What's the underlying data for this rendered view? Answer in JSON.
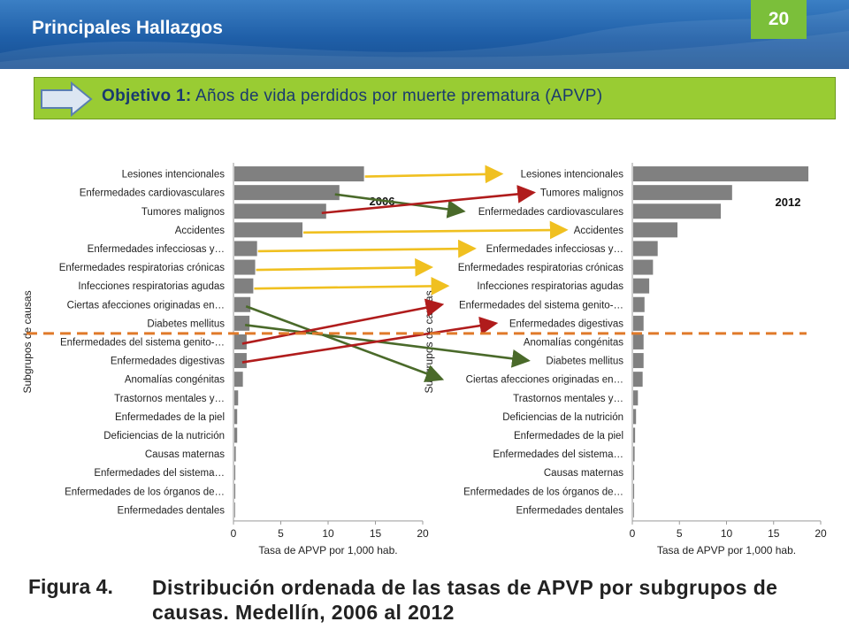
{
  "header": {
    "title": "Principales Hallazgos",
    "page_number": "20",
    "colors": {
      "bar": "#1f5fa8",
      "badge": "#7bbf3a"
    }
  },
  "objective": {
    "label": "Objetivo 1:",
    "text": "Años de vida perdidos por muerte prematura (APVP)",
    "color": "#99cc33"
  },
  "caption": {
    "label": "Figura 4.",
    "text": "Distribución ordenada de las tasas de APVP por subgrupos de causas. Medellín, 2006 al 2012"
  },
  "chart_data": [
    {
      "type": "bar",
      "orientation": "horizontal",
      "year_label": "2006",
      "categories": [
        "Lesiones intencionales",
        "Enfermedades cardiovasculares",
        "Tumores malignos",
        "Accidentes",
        "Enfermedades infecciosas y…",
        "Enfermedades respiratorias crónicas",
        "Infecciones respiratorias agudas",
        "Ciertas afecciones originadas en…",
        "Diabetes mellitus",
        "Enfermedades del sistema genito-…",
        "Enfermedades digestivas",
        "Anomalías congénitas",
        "Trastornos mentales y…",
        "Enfermedades de la piel",
        "Deficiencias de la nutrición",
        "Causas maternas",
        "Enfermedades del sistema…",
        "Enfermedades de los órganos de…",
        "Enfermedades dentales"
      ],
      "values": [
        13.7,
        11.1,
        9.7,
        7.2,
        2.4,
        2.2,
        2.0,
        1.7,
        1.6,
        1.3,
        1.3,
        0.9,
        0.4,
        0.3,
        0.3,
        0.15,
        0.1,
        0.1,
        0.05
      ],
      "xlabel": "Tasa de APVP por 1,000 hab.",
      "ylabel": "Subgrupos de causas",
      "xlim": [
        0,
        20
      ],
      "xticks": [
        "0",
        "5",
        "10",
        "15",
        "20"
      ],
      "bar_color": "#808080"
    },
    {
      "type": "bar",
      "orientation": "horizontal",
      "year_label": "2012",
      "categories": [
        "Lesiones intencionales",
        "Tumores malignos",
        "Enfermedades cardiovasculares",
        "Accidentes",
        "Enfermedades infecciosas y…",
        "Enfermedades respiratorias crónicas",
        "Infecciones respiratorias agudas",
        "Enfermedades del sistema genito-…",
        "Enfermedades digestivas",
        "Anomalías congénitas",
        "Diabetes mellitus",
        "Ciertas afecciones originadas en…",
        "Trastornos mentales y…",
        "Deficiencias de la nutrición",
        "Enfermedades de la piel",
        "Enfermedades del sistema…",
        "Causas maternas",
        "Enfermedades de los órganos de…",
        "Enfermedades dentales"
      ],
      "values": [
        18.6,
        10.5,
        9.3,
        4.7,
        2.6,
        2.1,
        1.7,
        1.2,
        1.1,
        1.1,
        1.1,
        1.0,
        0.5,
        0.3,
        0.2,
        0.15,
        0.1,
        0.1,
        0.05
      ],
      "xlabel": "Tasa de APVP por 1,000 hab.",
      "ylabel": "Subgrupos de causas",
      "xlim": [
        0,
        20
      ],
      "xticks": [
        "0",
        "5",
        "10",
        "15",
        "20"
      ],
      "bar_color": "#808080"
    }
  ],
  "rank_change_arrows": {
    "colors": {
      "same": "#f0c020",
      "down": "#4a6a2a",
      "up": "#b01c1c"
    },
    "links": [
      {
        "from_rank": 1,
        "to_rank": 1,
        "kind": "same"
      },
      {
        "from_rank": 2,
        "to_rank": 3,
        "kind": "down"
      },
      {
        "from_rank": 3,
        "to_rank": 2,
        "kind": "up"
      },
      {
        "from_rank": 4,
        "to_rank": 4,
        "kind": "same"
      },
      {
        "from_rank": 5,
        "to_rank": 5,
        "kind": "same"
      },
      {
        "from_rank": 6,
        "to_rank": 6,
        "kind": "same"
      },
      {
        "from_rank": 7,
        "to_rank": 7,
        "kind": "same"
      },
      {
        "from_rank": 8,
        "to_rank": 12,
        "kind": "down"
      },
      {
        "from_rank": 9,
        "to_rank": 11,
        "kind": "down"
      },
      {
        "from_rank": 10,
        "to_rank": 8,
        "kind": "up"
      },
      {
        "from_rank": 11,
        "to_rank": 9,
        "kind": "up"
      }
    ],
    "threshold_after_rank": 9,
    "threshold_color": "#e07a2a"
  }
}
